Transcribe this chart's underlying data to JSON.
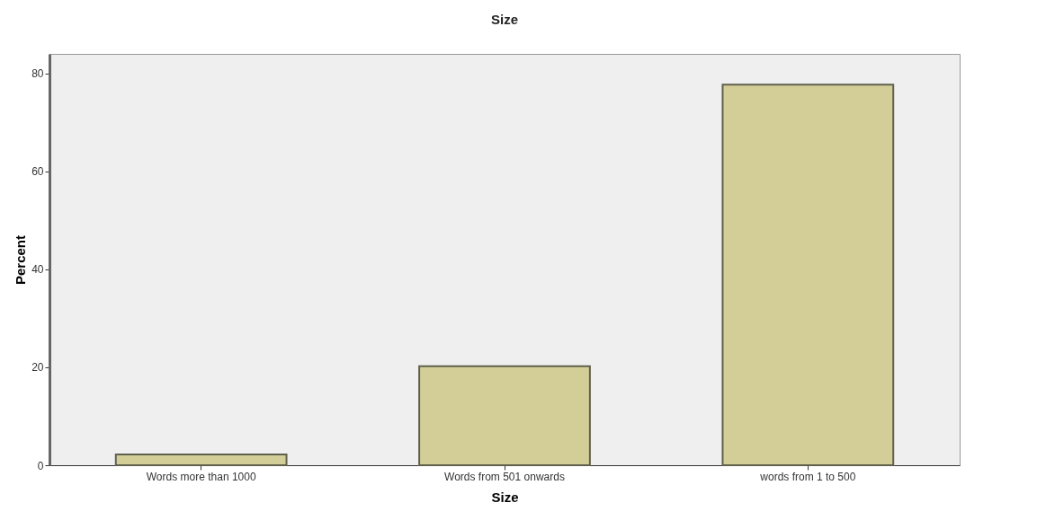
{
  "chart_data": {
    "type": "bar",
    "title": "Size",
    "xlabel": "Size",
    "ylabel": "Percent",
    "categories": [
      "Words more than 1000",
      "Words from 501 onwards",
      "words from 1 to 500"
    ],
    "values": [
      2.2,
      20.2,
      77.7
    ],
    "color": "#d3ce98",
    "ylim": [
      0,
      84
    ],
    "yticks": [
      0,
      20,
      40,
      60,
      80
    ],
    "grid": false
  }
}
